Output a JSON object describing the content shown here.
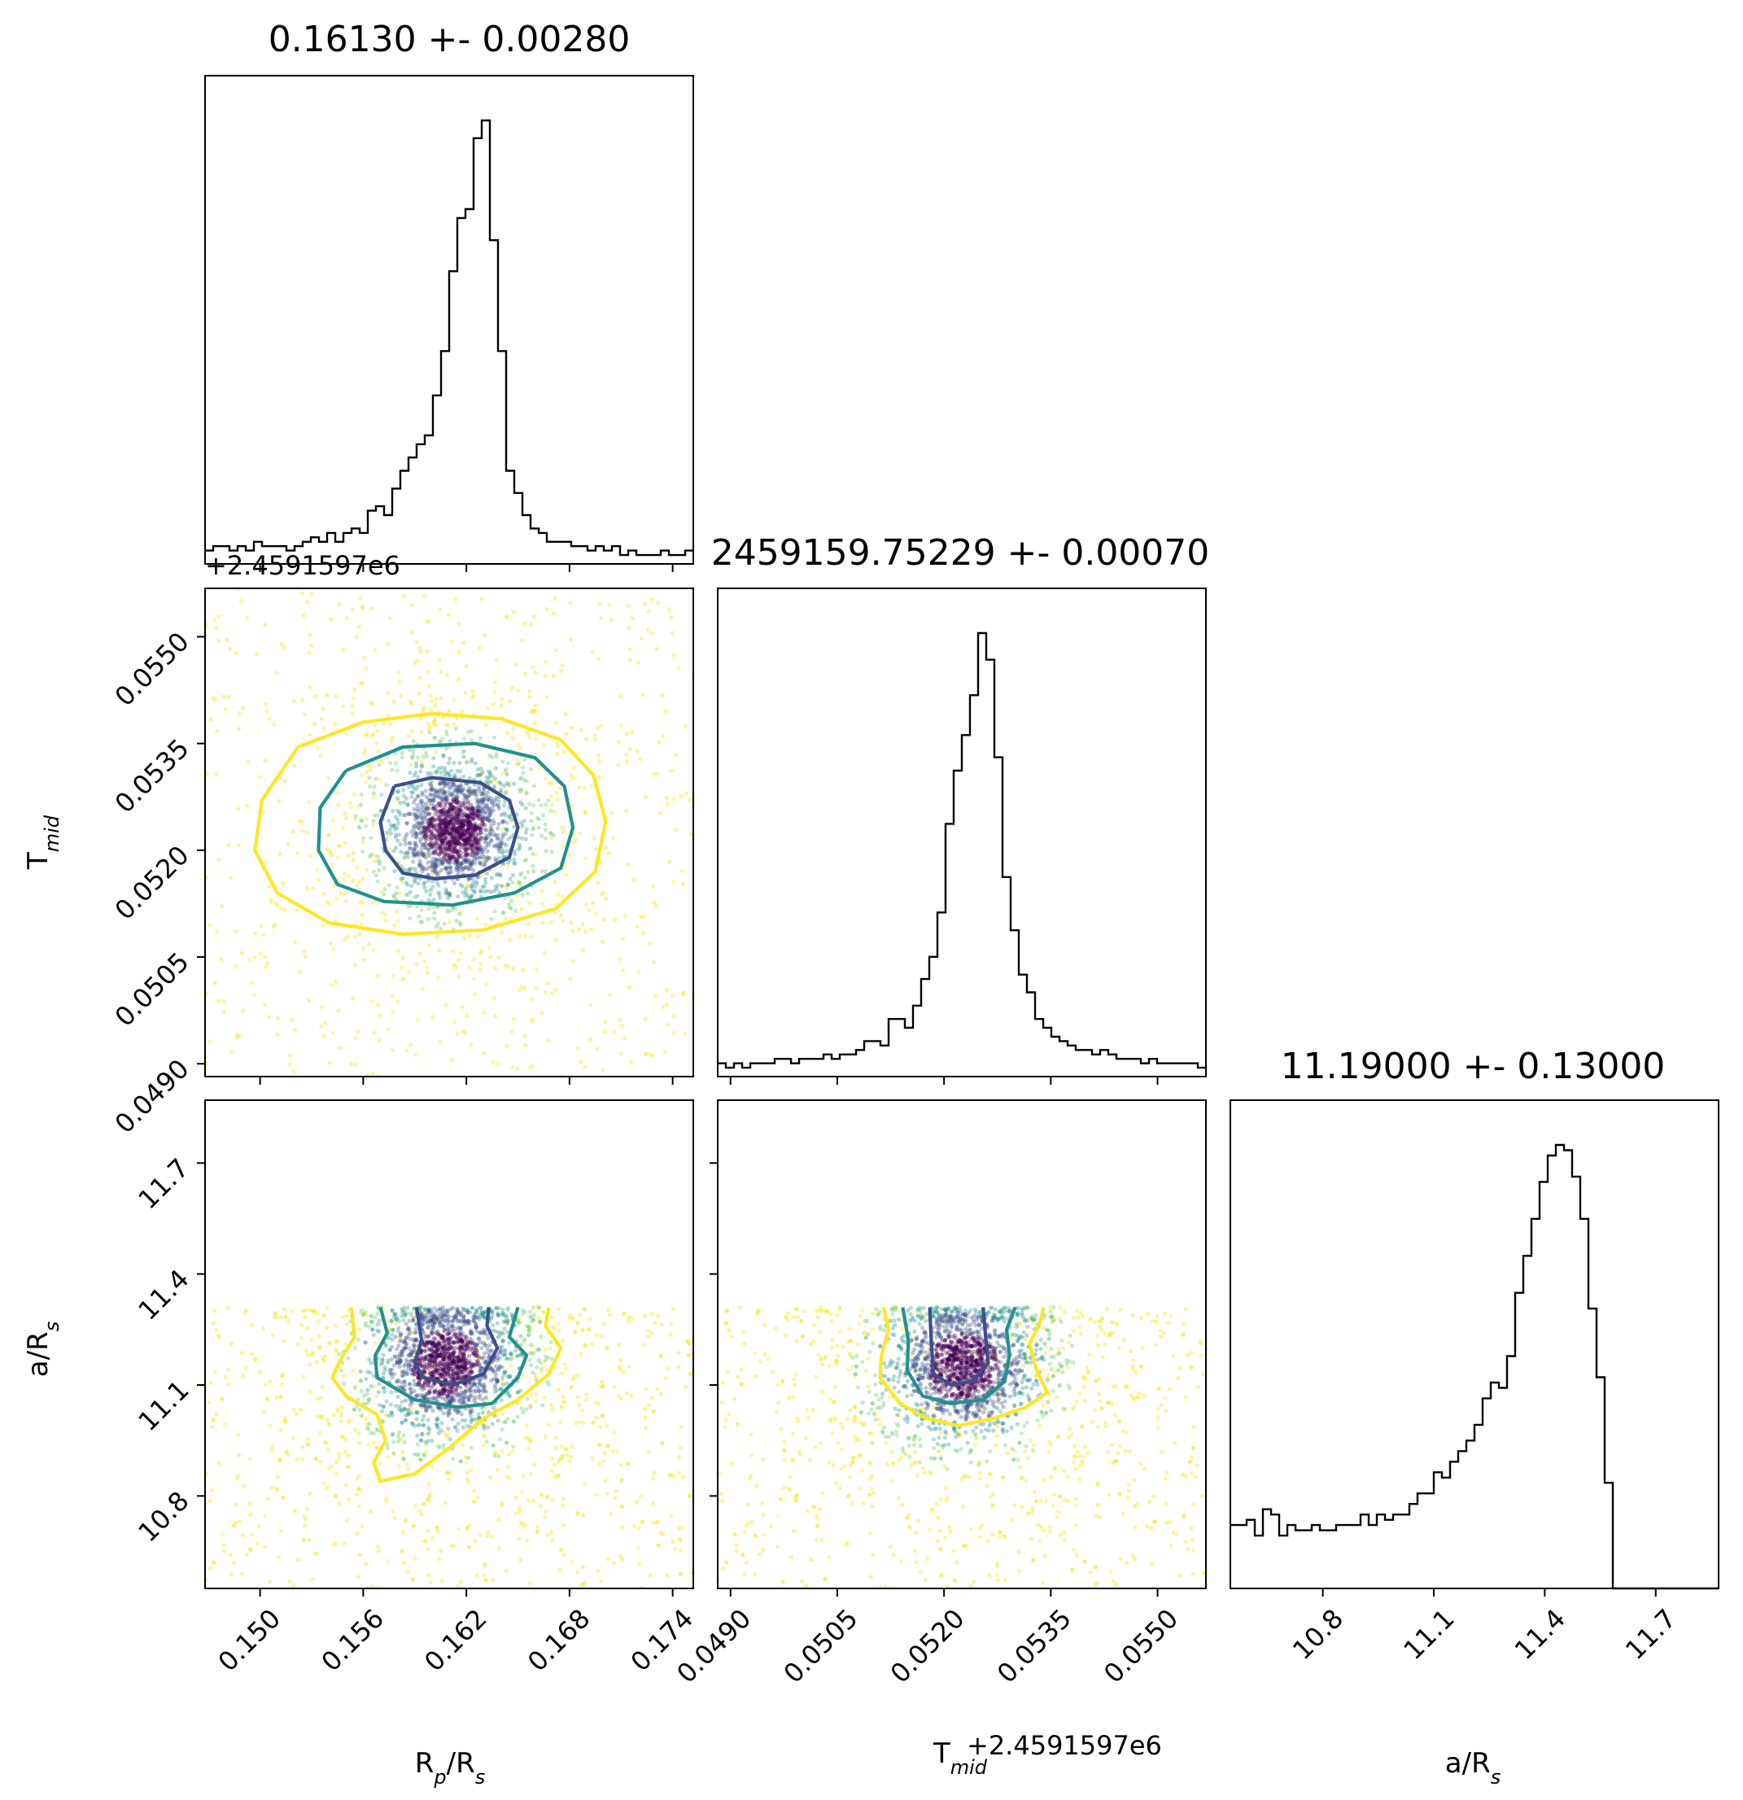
{
  "chart_data": {
    "type": "corner",
    "parameters": [
      {
        "key": "rp",
        "title": "0.16130 +- 0.00280",
        "label_main": "R",
        "label_sub1": "p",
        "label_mid": "/R",
        "label_sub2": "s",
        "range": [
          0.1468,
          0.1752
        ],
        "ticks": [
          0.15,
          0.156,
          0.162,
          0.168,
          0.174
        ],
        "tick_labels": [
          "0.150",
          "0.156",
          "0.162",
          "0.168",
          "0.174"
        ]
      },
      {
        "key": "tmid",
        "title": "2459159.75229 +- 0.00070",
        "label_main": "T",
        "label_sub1": "mid",
        "label_mid": "",
        "label_sub2": "",
        "offset_text": "+2.4591597e6",
        "range": [
          0.04882,
          0.05568
        ],
        "ticks": [
          0.049,
          0.0505,
          0.052,
          0.0535,
          0.055
        ],
        "tick_labels": [
          "0.0490",
          "0.0505",
          "0.0520",
          "0.0535",
          "0.0550"
        ]
      },
      {
        "key": "ars",
        "title": "11.19000 +- 0.13000",
        "label_main": "a/R",
        "label_sub1": "",
        "label_mid": "",
        "label_sub2": "s",
        "range": [
          10.55,
          11.87
        ],
        "ticks": [
          10.8,
          11.1,
          11.4,
          11.7
        ],
        "tick_labels": [
          "10.8",
          "11.1",
          "11.4",
          "11.7"
        ]
      }
    ],
    "histograms": {
      "rp": [
        3,
        4,
        4,
        3,
        4,
        3,
        5,
        4,
        4,
        4,
        3,
        4,
        5,
        6,
        5,
        7,
        5,
        7,
        8,
        7,
        12,
        13,
        11,
        17,
        21,
        24,
        27,
        29,
        38,
        48,
        66,
        78,
        80,
        96,
        100,
        73,
        48,
        21,
        16,
        11,
        8,
        7,
        5,
        5,
        5,
        4,
        4,
        3,
        4,
        3,
        4,
        2,
        3,
        2,
        2,
        2,
        3,
        2,
        2,
        3
      ],
      "tmid": [
        3,
        2,
        3,
        2,
        3,
        3,
        3,
        4,
        4,
        3,
        4,
        4,
        4,
        5,
        4,
        5,
        5,
        6,
        8,
        8,
        7,
        13,
        13,
        11,
        16,
        22,
        27,
        37,
        57,
        69,
        77,
        86,
        100,
        94,
        72,
        45,
        33,
        23,
        19,
        13,
        11,
        9,
        8,
        7,
        6,
        6,
        5,
        6,
        5,
        4,
        4,
        4,
        3,
        4,
        3,
        3,
        3,
        3,
        3,
        2
      ],
      "ars": [
        12,
        12,
        13,
        10,
        15,
        14,
        10,
        12,
        11,
        11,
        12,
        11,
        11,
        12,
        12,
        12,
        14,
        12,
        14,
        13,
        14,
        14,
        16,
        18,
        18,
        22,
        21,
        24,
        26,
        28,
        31,
        36,
        39,
        38,
        44,
        56,
        63,
        70,
        77,
        82,
        84,
        83,
        78,
        70,
        53,
        40,
        20,
        0,
        0,
        0,
        0,
        0,
        0,
        0,
        0,
        0,
        0,
        0,
        0,
        0
      ]
    },
    "hist_colors": {
      "line": "#000000"
    },
    "contour_levels": [
      {
        "name": "inner",
        "color": "#3b4f8a"
      },
      {
        "name": "middle",
        "color": "#21918c"
      },
      {
        "name": "outer",
        "color": "#fde725"
      }
    ],
    "scatter_colors": [
      "#440154",
      "#3b528b",
      "#21918c",
      "#5ec962",
      "#fde725"
    ],
    "joint": {
      "tmid_vs_rp": {
        "center": [
          0.1613,
          0.05228
        ],
        "contours": [
          [
            [
              0.1578,
              0.0529
            ],
            [
              0.16,
              0.05302
            ],
            [
              0.1628,
              0.05295
            ],
            [
              0.1645,
              0.0527
            ],
            [
              0.165,
              0.05232
            ],
            [
              0.1645,
              0.0519
            ],
            [
              0.1625,
              0.05165
            ],
            [
              0.1602,
              0.0516
            ],
            [
              0.1583,
              0.05168
            ],
            [
              0.1573,
              0.052
            ],
            [
              0.157,
              0.0524
            ],
            [
              0.1578,
              0.0529
            ]
          ],
          [
            [
              0.155,
              0.05312
            ],
            [
              0.1583,
              0.05345
            ],
            [
              0.1625,
              0.0535
            ],
            [
              0.166,
              0.0533
            ],
            [
              0.1677,
              0.0529
            ],
            [
              0.1682,
              0.05232
            ],
            [
              0.1675,
              0.05175
            ],
            [
              0.1648,
              0.0514
            ],
            [
              0.1612,
              0.05123
            ],
            [
              0.1572,
              0.05128
            ],
            [
              0.1545,
              0.05152
            ],
            [
              0.1534,
              0.052
            ],
            [
              0.1535,
              0.0526
            ],
            [
              0.155,
              0.05312
            ]
          ],
          [
            [
              0.1522,
              0.05345
            ],
            [
              0.156,
              0.0538
            ],
            [
              0.16,
              0.05392
            ],
            [
              0.164,
              0.05385
            ],
            [
              0.1675,
              0.05355
            ],
            [
              0.1694,
              0.05305
            ],
            [
              0.1701,
              0.0524
            ],
            [
              0.1695,
              0.0517
            ],
            [
              0.1672,
              0.05118
            ],
            [
              0.163,
              0.05088
            ],
            [
              0.1583,
              0.05082
            ],
            [
              0.154,
              0.05098
            ],
            [
              0.151,
              0.0514
            ],
            [
              0.1497,
              0.052
            ],
            [
              0.1501,
              0.0527
            ],
            [
              0.1522,
              0.05345
            ]
          ]
        ]
      },
      "ars_vs_rp": {
        "center": [
          0.1612,
          11.19
        ],
        "contours": [
          [
            [
              0.1591,
              11.31
            ],
            [
              0.1594,
              11.22
            ],
            [
              0.159,
              11.16
            ],
            [
              0.1595,
              11.12
            ],
            [
              0.1612,
              11.1
            ],
            [
              0.163,
              11.13
            ],
            [
              0.1638,
              11.2
            ],
            [
              0.1632,
              11.26
            ],
            [
              0.1633,
              11.31
            ]
          ],
          [
            [
              0.157,
              11.31
            ],
            [
              0.1574,
              11.24
            ],
            [
              0.1567,
              11.18
            ],
            [
              0.1568,
              11.12
            ],
            [
              0.159,
              11.06
            ],
            [
              0.1615,
              11.04
            ],
            [
              0.1635,
              11.05
            ],
            [
              0.165,
              11.12
            ],
            [
              0.1655,
              11.18
            ],
            [
              0.1645,
              11.23
            ],
            [
              0.165,
              11.31
            ]
          ],
          [
            [
              0.1553,
              11.31
            ],
            [
              0.1555,
              11.23
            ],
            [
              0.1547,
              11.17
            ],
            [
              0.1542,
              11.12
            ],
            [
              0.155,
              11.07
            ],
            [
              0.1568,
              11.02
            ],
            [
              0.1573,
              10.95
            ],
            [
              0.1566,
              10.89
            ],
            [
              0.157,
              10.84
            ],
            [
              0.159,
              10.86
            ],
            [
              0.161,
              10.93
            ],
            [
              0.163,
              11.01
            ],
            [
              0.165,
              11.06
            ],
            [
              0.1668,
              11.13
            ],
            [
              0.1675,
              11.2
            ],
            [
              0.1666,
              11.26
            ],
            [
              0.1668,
              11.31
            ]
          ]
        ]
      },
      "ars_vs_tmid": {
        "center": [
          0.05229,
          11.19
        ],
        "contours": [
          [
            [
              0.0518,
              11.31
            ],
            [
              0.05182,
              11.22
            ],
            [
              0.05185,
              11.13
            ],
            [
              0.0521,
              11.1
            ],
            [
              0.0524,
              11.11
            ],
            [
              0.05262,
              11.16
            ],
            [
              0.05258,
              11.24
            ],
            [
              0.05255,
              11.31
            ]
          ],
          [
            [
              0.05142,
              11.31
            ],
            [
              0.0515,
              11.22
            ],
            [
              0.05148,
              11.14
            ],
            [
              0.0517,
              11.07
            ],
            [
              0.0521,
              11.05
            ],
            [
              0.05255,
              11.06
            ],
            [
              0.05285,
              11.11
            ],
            [
              0.05292,
              11.18
            ],
            [
              0.05288,
              11.25
            ],
            [
              0.053,
              11.31
            ]
          ],
          [
            [
              0.05115,
              11.31
            ],
            [
              0.05122,
              11.25
            ],
            [
              0.05112,
              11.18
            ],
            [
              0.0511,
              11.12
            ],
            [
              0.05138,
              11.05
            ],
            [
              0.05175,
              11.01
            ],
            [
              0.0522,
              10.99
            ],
            [
              0.0527,
              11.01
            ],
            [
              0.05315,
              11.04
            ],
            [
              0.05345,
              11.08
            ],
            [
              0.0533,
              11.14
            ],
            [
              0.0532,
              11.21
            ],
            [
              0.05335,
              11.27
            ],
            [
              0.0534,
              11.31
            ]
          ]
        ]
      }
    }
  }
}
